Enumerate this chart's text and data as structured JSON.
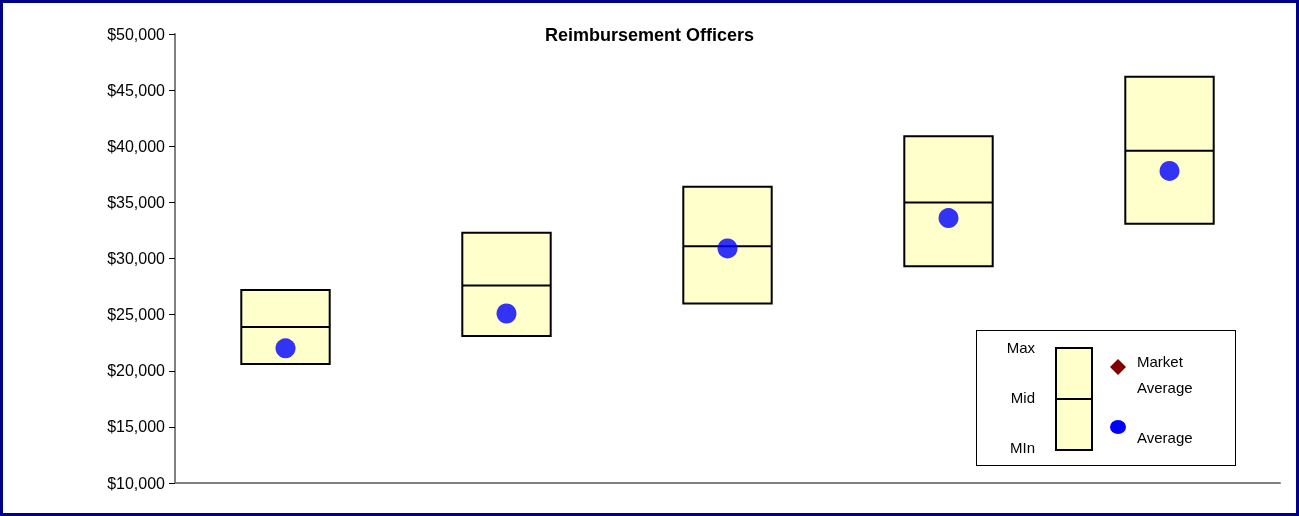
{
  "chart_data": {
    "type": "box",
    "title": "Reimbursement Officers",
    "categories": [
      null,
      null,
      null,
      null,
      null
    ],
    "series": [
      {
        "color": "#ffffcc",
        "boxes": [
          {
            "low": 20600,
            "q1": 20600,
            "median": 23900,
            "q3": 27200,
            "high": 27200
          },
          {
            "low": 23100,
            "q1": 23100,
            "median": 27600,
            "q3": 32300,
            "high": 32300
          },
          {
            "low": 26000,
            "q1": 26000,
            "median": 31100,
            "q3": 36400,
            "high": 36400
          },
          {
            "low": 29300,
            "q1": 29300,
            "median": 35000,
            "q3": 40900,
            "high": 40900
          },
          {
            "low": 33100,
            "q1": 33100,
            "median": 39600,
            "q3": 46200,
            "high": 46200
          }
        ]
      },
      {
        "type": "scatter",
        "name": "Market Average",
        "color": "#800000",
        "marker": "diamond",
        "values": [
          null,
          null,
          null,
          null,
          null
        ]
      },
      {
        "type": "scatter",
        "name": "Average",
        "color": "#0000ff",
        "marker": "circle",
        "values": [
          22000,
          25100,
          30900,
          33600,
          37800
        ]
      }
    ],
    "ylim": [
      10000,
      50000
    ],
    "yticks": [
      {
        "value": 10000,
        "label": "$10,000"
      },
      {
        "value": 15000,
        "label": "$15,000"
      },
      {
        "value": 20000,
        "label": "$20,000"
      },
      {
        "value": 25000,
        "label": "$25,000"
      },
      {
        "value": 30000,
        "label": "$30,000"
      },
      {
        "value": 35000,
        "label": "$35,000"
      },
      {
        "value": 40000,
        "label": "$40,000"
      },
      {
        "value": 45000,
        "label": "$45,000"
      },
      {
        "value": 50000,
        "label": "$50,000"
      }
    ],
    "annotations": [
      "Max",
      "Mid",
      "MIn"
    ],
    "legend": "bottom right"
  }
}
